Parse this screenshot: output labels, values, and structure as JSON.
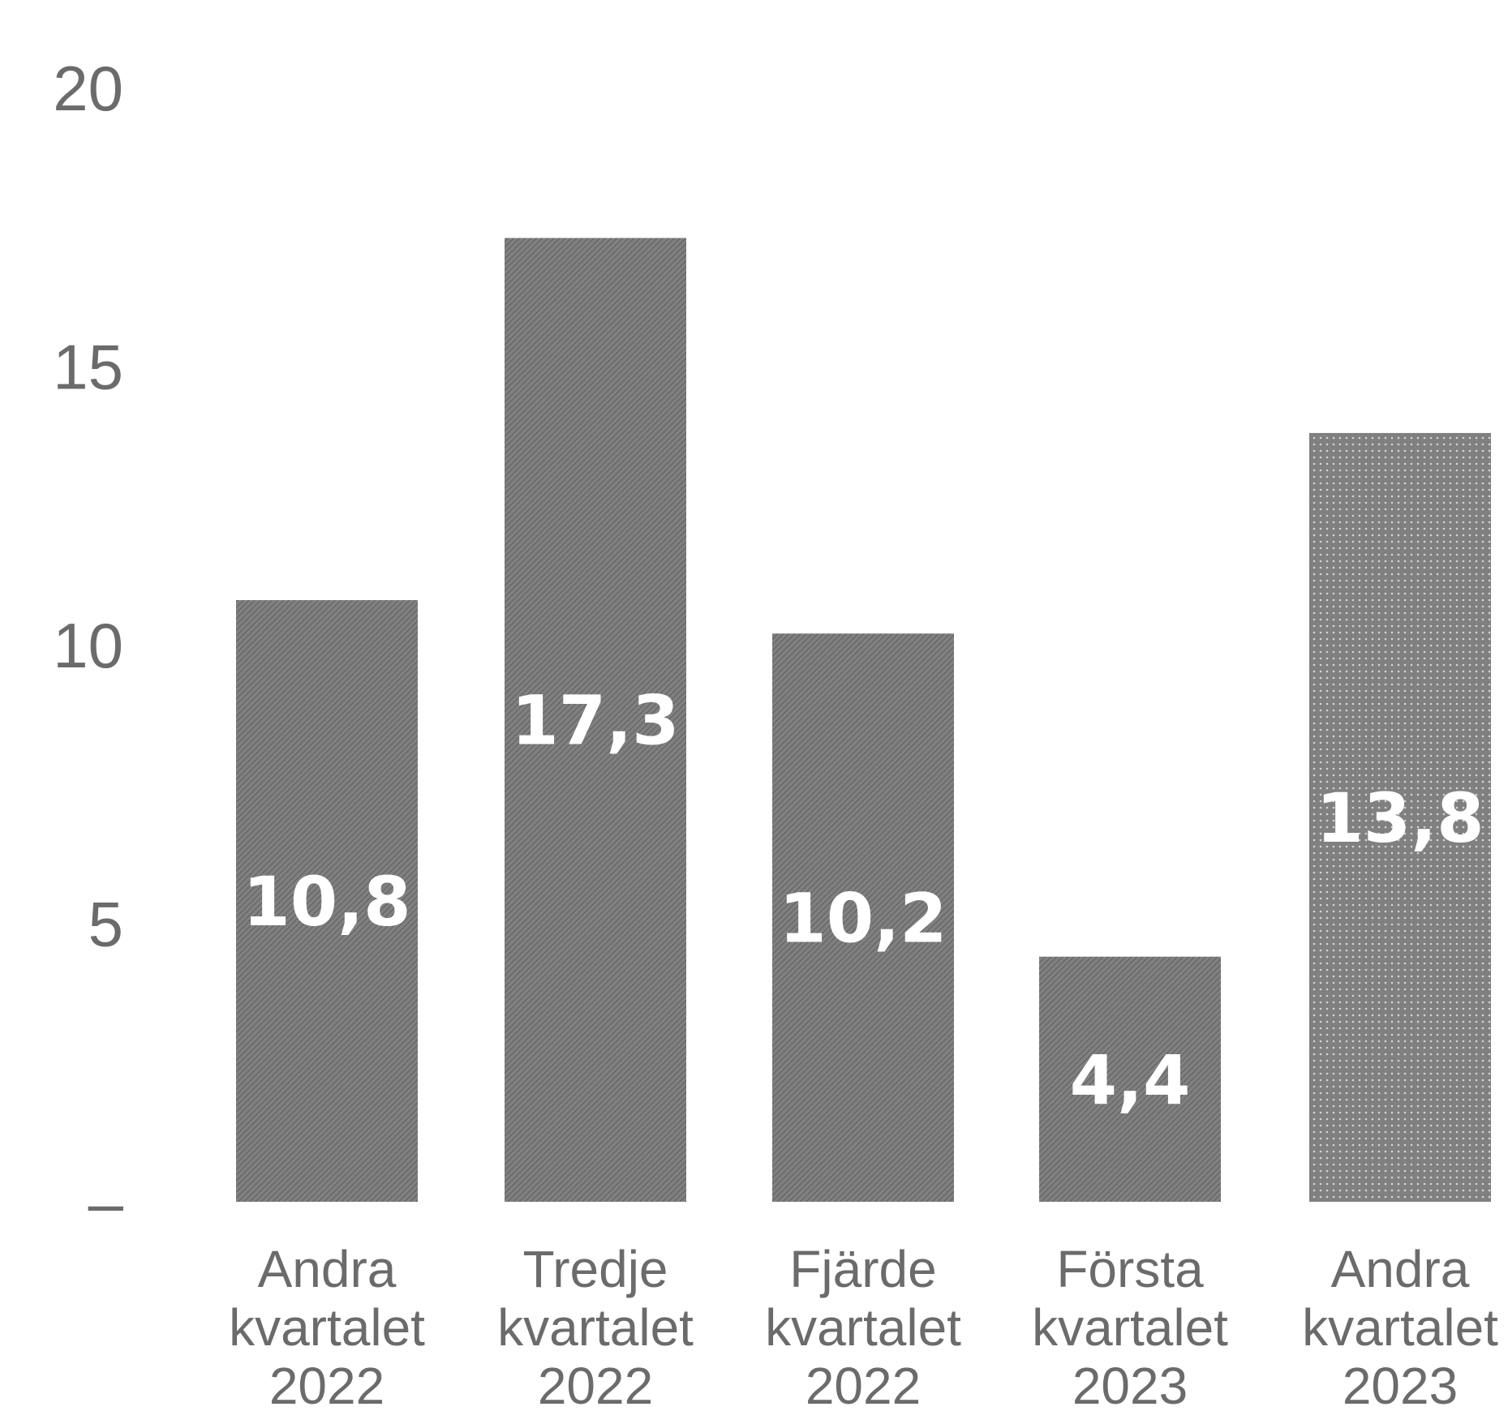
{
  "chart_data": {
    "type": "bar",
    "title": "",
    "xlabel": "",
    "ylabel": "",
    "ylim": [
      0,
      20
    ],
    "yticks": [
      {
        "value": 0,
        "label": "–"
      },
      {
        "value": 5,
        "label": "5"
      },
      {
        "value": 10,
        "label": "10"
      },
      {
        "value": 15,
        "label": "15"
      },
      {
        "value": 20,
        "label": "20"
      }
    ],
    "categories": [
      [
        "Andra",
        "kvartalet",
        "2022"
      ],
      [
        "Tredje",
        "kvartalet",
        "2022"
      ],
      [
        "Fjärde",
        "kvartalet",
        "2022"
      ],
      [
        "Första",
        "kvartalet",
        "2023"
      ],
      [
        "Andra",
        "kvartalet",
        "2023"
      ]
    ],
    "values": [
      10.8,
      17.3,
      10.2,
      4.4,
      13.8
    ],
    "value_labels": [
      "10,8",
      "17,3",
      "10,2",
      "4,4",
      "13,8"
    ],
    "patterns": [
      "hatched",
      "hatched",
      "hatched",
      "hatched",
      "dotted"
    ],
    "grid": false,
    "colors": {
      "bar": "#808080",
      "bar_texture": "#5e5e5e",
      "dots": "#d4d4d4",
      "value_label": "#ffffff",
      "axis_text": "#6b6b6b"
    }
  }
}
